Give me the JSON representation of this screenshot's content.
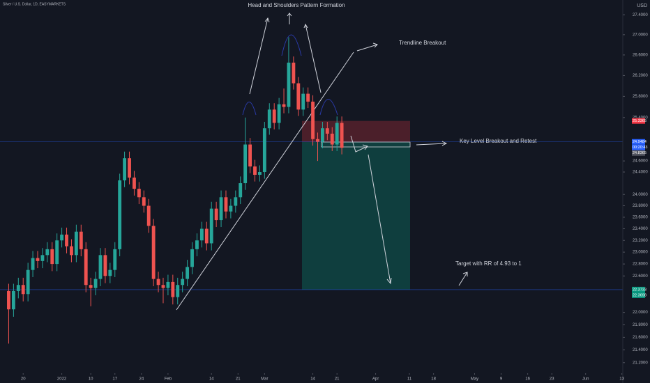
{
  "chart_data": {
    "type": "candlestick",
    "title": "Silver / U.S. Dollar, 1D, EASYMARKETS",
    "currency": "USD",
    "log_scale": true,
    "up_color": "#26a69a",
    "down_color": "#ef5350",
    "x": [
      null,
      null,
      null,
      null,
      null,
      null,
      null,
      null,
      null,
      null,
      null,
      null,
      null,
      null,
      null,
      null,
      null,
      null,
      null,
      null,
      null,
      null,
      null,
      null,
      null,
      null,
      null,
      null,
      null,
      null,
      null,
      null,
      null,
      null,
      null,
      null,
      null,
      null,
      null,
      null,
      null,
      null,
      null,
      null,
      null,
      null,
      null,
      null,
      null,
      null,
      null,
      null,
      null,
      null,
      null,
      null,
      null,
      null,
      null,
      null,
      null,
      null,
      null,
      null,
      null,
      null,
      null,
      null,
      null,
      null
    ],
    "open": [
      22.35,
      22.05,
      22.35,
      22.45,
      22.3,
      22.7,
      22.9,
      22.85,
      22.95,
      23.05,
      22.8,
      23.2,
      23.3,
      23.1,
      22.95,
      23.35,
      23.05,
      22.45,
      22.4,
      22.55,
      22.95,
      22.6,
      22.7,
      23.05,
      24.25,
      24.65,
      24.3,
      24.1,
      23.95,
      23.8,
      23.45,
      22.55,
      22.45,
      22.4,
      22.5,
      22.25,
      22.45,
      22.55,
      22.75,
      23.05,
      23.2,
      23.4,
      23.15,
      23.75,
      23.55,
      23.95,
      23.7,
      23.8,
      23.95,
      24.2,
      24.9,
      24.5,
      24.35,
      24.4,
      25.2,
      25.55,
      25.3,
      25.65,
      25.6,
      26.45,
      26.05,
      25.55,
      25.85,
      25.7,
      25.0,
      24.95,
      25.2,
      25.1,
      24.9,
      25.3
    ],
    "high": [
      22.47,
      22.47,
      22.57,
      22.57,
      22.82,
      23.02,
      23.02,
      23.07,
      23.17,
      23.17,
      23.32,
      23.42,
      23.42,
      23.22,
      23.47,
      23.47,
      23.17,
      22.57,
      22.67,
      23.07,
      23.07,
      22.82,
      23.17,
      24.37,
      24.77,
      24.77,
      24.42,
      24.22,
      24.07,
      23.92,
      23.57,
      22.67,
      22.57,
      22.62,
      22.62,
      22.57,
      22.67,
      22.87,
      23.17,
      23.32,
      23.52,
      23.52,
      23.87,
      23.87,
      24.07,
      24.07,
      23.92,
      24.07,
      24.32,
      25.4,
      25.02,
      24.62,
      24.52,
      25.32,
      25.67,
      25.67,
      25.77,
      25.95,
      26.95,
      26.57,
      26.17,
      25.97,
      25.97,
      25.82,
      25.12,
      25.32,
      25.32,
      25.22,
      25.42,
      25.42
    ],
    "low": [
      21.5,
      21.93,
      22.23,
      22.18,
      22.18,
      22.58,
      22.73,
      22.73,
      22.83,
      22.68,
      22.68,
      23.08,
      22.98,
      22.83,
      22.83,
      22.93,
      22.33,
      22.1,
      22.28,
      22.43,
      22.48,
      22.48,
      22.58,
      22.93,
      24.13,
      24.18,
      23.98,
      23.83,
      23.68,
      23.33,
      22.43,
      22.33,
      22.15,
      22.28,
      22.13,
      22.13,
      22.33,
      22.43,
      22.63,
      22.93,
      23.08,
      23.03,
      23.03,
      23.43,
      23.43,
      23.58,
      23.58,
      23.68,
      23.83,
      24.08,
      24.38,
      24.23,
      24.23,
      24.28,
      25.08,
      25.18,
      25.18,
      25.48,
      25.48,
      25.93,
      25.43,
      25.43,
      25.58,
      24.88,
      24.6,
      24.83,
      24.98,
      24.78,
      24.78,
      24.72
    ],
    "close": [
      22.05,
      22.35,
      22.45,
      22.3,
      22.7,
      22.9,
      22.85,
      22.95,
      23.05,
      22.8,
      23.2,
      23.3,
      23.1,
      22.95,
      23.35,
      23.05,
      22.45,
      22.4,
      22.55,
      22.95,
      22.6,
      22.7,
      23.05,
      24.25,
      24.65,
      24.3,
      24.1,
      23.95,
      23.8,
      23.45,
      22.55,
      22.45,
      22.4,
      22.5,
      22.25,
      22.45,
      22.55,
      22.75,
      23.05,
      23.2,
      23.4,
      23.15,
      23.75,
      23.55,
      23.95,
      23.7,
      23.8,
      23.95,
      24.2,
      24.9,
      24.5,
      24.35,
      24.4,
      25.2,
      25.55,
      25.3,
      25.65,
      25.6,
      26.45,
      26.05,
      25.55,
      25.85,
      25.7,
      25.0,
      24.95,
      25.2,
      25.1,
      24.9,
      25.3,
      24.84
    ],
    "xlim": [
      -1.8,
      127.2
    ],
    "xticks": [
      {
        "value": 3,
        "label": "20"
      },
      {
        "value": 11,
        "label": "2022"
      },
      {
        "value": 17,
        "label": "10"
      },
      {
        "value": 22,
        "label": "17"
      },
      {
        "value": 27.5,
        "label": "24"
      },
      {
        "value": 33,
        "label": "Feb"
      },
      {
        "value": 42,
        "label": "14"
      },
      {
        "value": 47.5,
        "label": "21"
      },
      {
        "value": 53,
        "label": "Mar"
      },
      {
        "value": 63,
        "label": "14"
      },
      {
        "value": 68,
        "label": "21"
      },
      {
        "value": 76,
        "label": "Apr"
      },
      {
        "value": 83,
        "label": "11"
      },
      {
        "value": 88,
        "label": "18"
      },
      {
        "value": 96.5,
        "label": "May"
      },
      {
        "value": 102,
        "label": "9"
      },
      {
        "value": 107.5,
        "label": "16"
      },
      {
        "value": 112.5,
        "label": "23"
      },
      {
        "value": 119.5,
        "label": "Jun"
      },
      {
        "value": 127,
        "label": "13"
      }
    ],
    "ylim": [
      21.1,
      27.7
    ],
    "yticks": [
      {
        "value": 21.2,
        "label": "21.2000"
      },
      {
        "value": 21.4,
        "label": "21.4000"
      },
      {
        "value": 21.6,
        "label": "21.6000"
      },
      {
        "value": 21.8,
        "label": "21.8000"
      },
      {
        "value": 22.0,
        "label": "22.0000"
      },
      {
        "value": 22.6,
        "label": "22.6000"
      },
      {
        "value": 22.8,
        "label": "22.8000"
      },
      {
        "value": 23.0,
        "label": "23.0000"
      },
      {
        "value": 23.2,
        "label": "23.2000"
      },
      {
        "value": 23.4,
        "label": "23.4000"
      },
      {
        "value": 23.6,
        "label": "23.6000"
      },
      {
        "value": 23.8,
        "label": "23.8000"
      },
      {
        "value": 24.0,
        "label": "24.0000"
      },
      {
        "value": 24.4,
        "label": "24.4000"
      },
      {
        "value": 24.6,
        "label": "24.6000"
      },
      {
        "value": 25.4,
        "label": "25.4000"
      },
      {
        "value": 25.8,
        "label": "25.8000"
      },
      {
        "value": 26.2,
        "label": "26.2000"
      },
      {
        "value": 26.6,
        "label": "26.6000"
      },
      {
        "value": 27.0,
        "label": "27.0000"
      },
      {
        "value": 27.4,
        "label": "27.4000"
      }
    ],
    "price_labels": [
      {
        "value": 25.3365,
        "color": "#f23645"
      },
      {
        "value": 24.9484,
        "color": "#2962ff"
      },
      {
        "value": 24.8365,
        "color": "#50535e"
      },
      {
        "value": 22.3733,
        "color": "#089981"
      },
      {
        "value": 22.3698,
        "color": "#089981"
      }
    ],
    "countdown": "00:20:43",
    "annotations": [
      "Head and Shoulders Pattern Formation",
      "Trendline Breakout",
      "Key Level Breakout and Retest",
      "Target with RR of 4.93 to 1"
    ]
  }
}
